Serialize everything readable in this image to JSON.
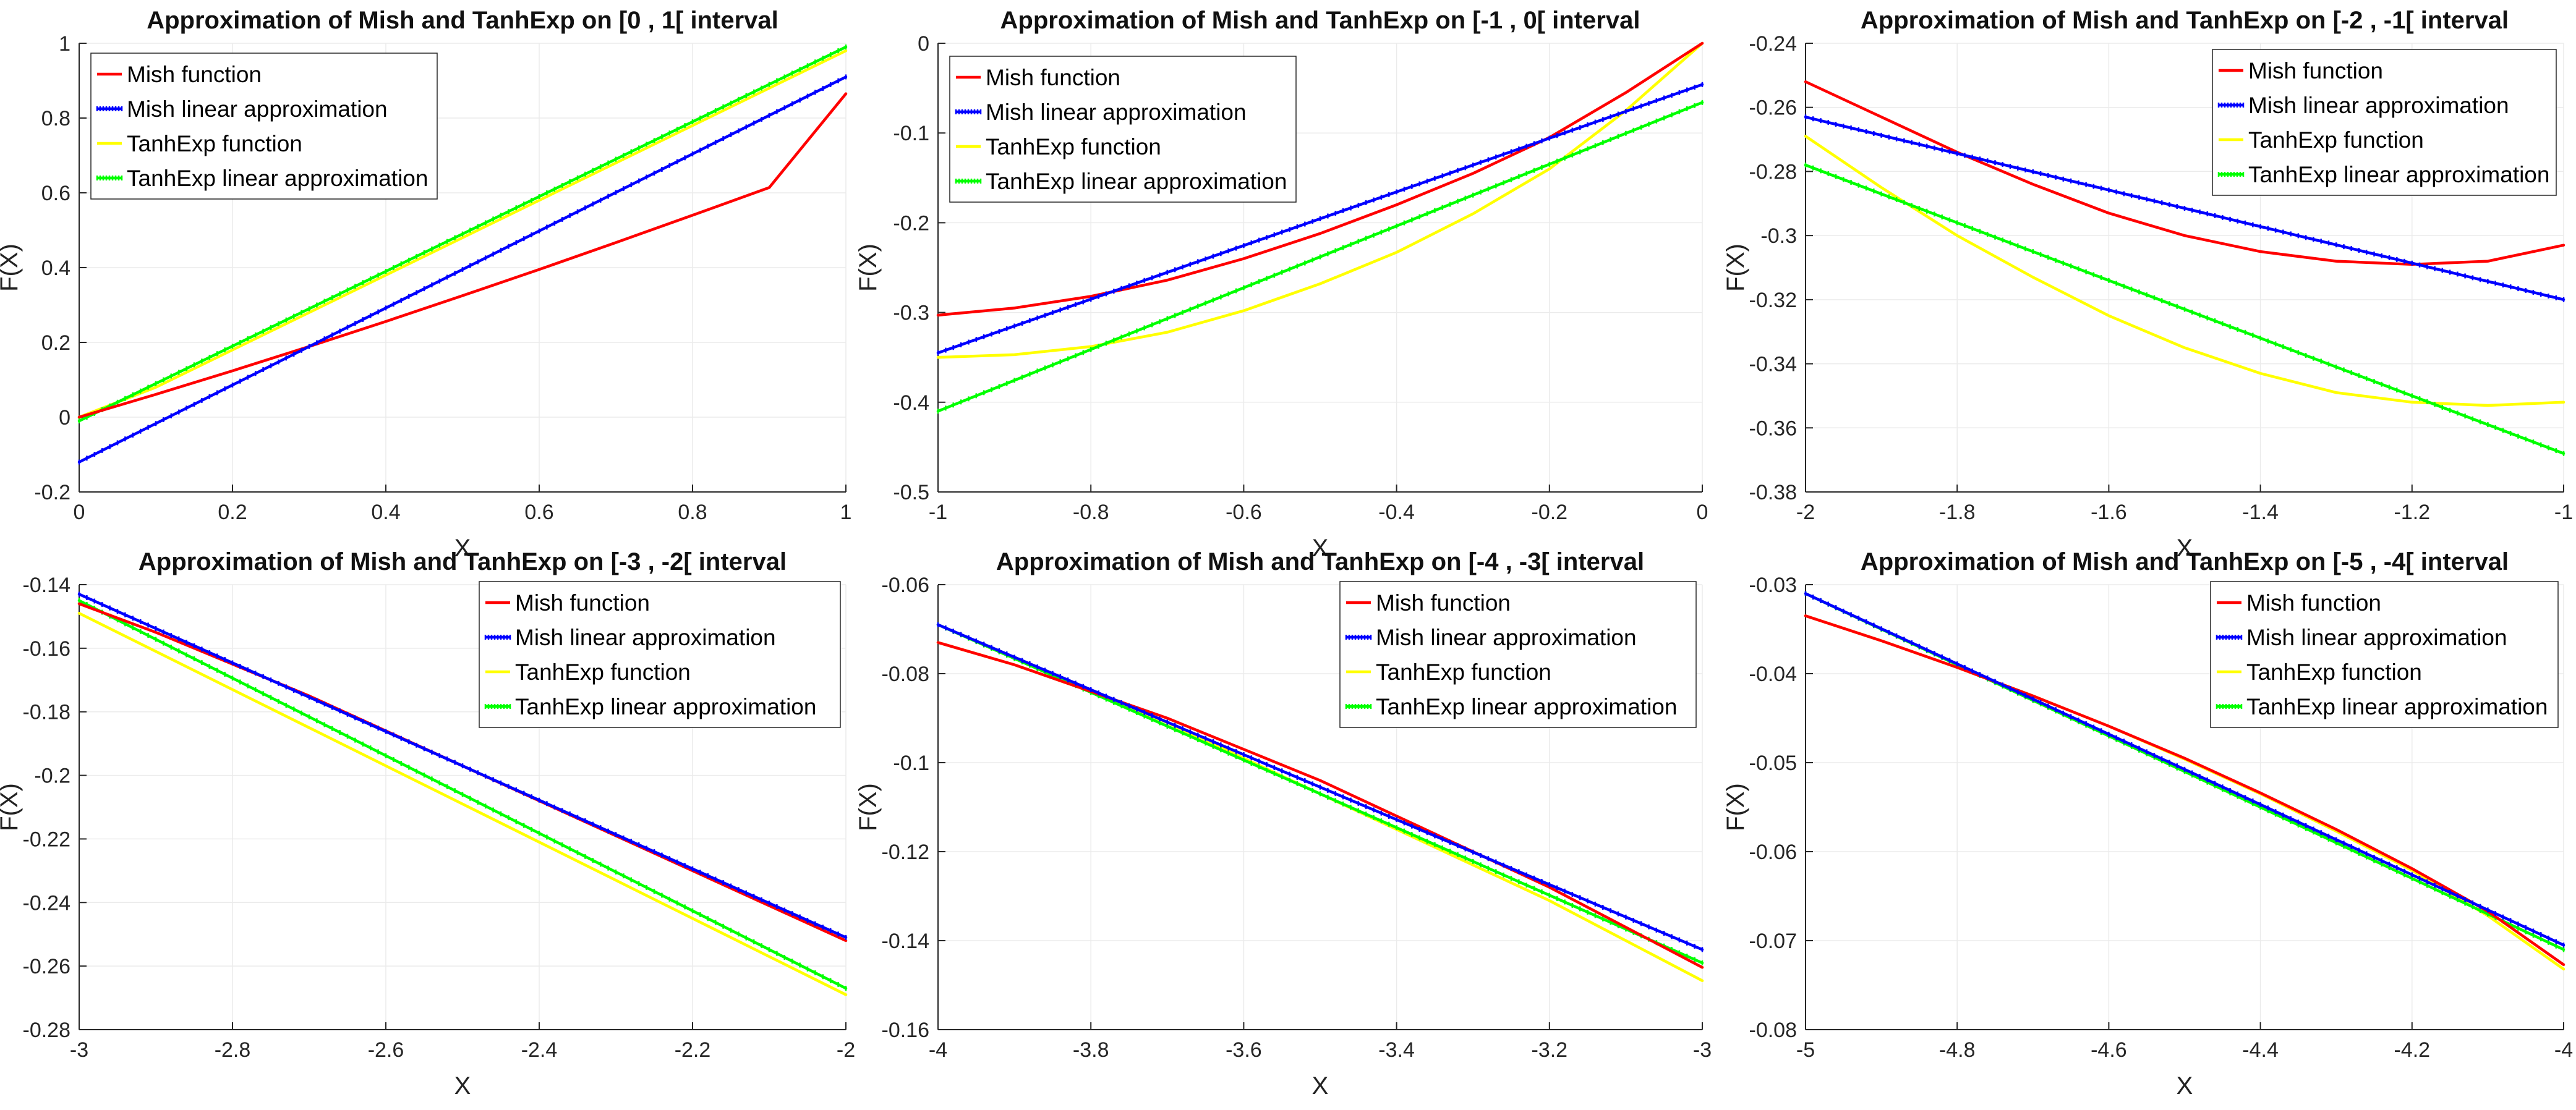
{
  "chart_data": [
    {
      "type": "line",
      "title": "Approximation of Mish and TanhExp on [0 , 1[ interval",
      "xlabel": "X",
      "ylabel": "F(X)",
      "xlim": [
        0,
        1
      ],
      "ylim": [
        -0.2,
        1
      ],
      "xticks": [
        0,
        0.2,
        0.4,
        0.6,
        0.8,
        1
      ],
      "yticks": [
        -0.2,
        0,
        0.2,
        0.4,
        0.6,
        0.8,
        1
      ],
      "xtick_labels": [
        "0",
        "0.2",
        "0.4",
        "0.6",
        "0.8",
        "1"
      ],
      "ytick_labels": [
        "-0.2",
        "0",
        "0.2",
        "0.4",
        "0.6",
        "0.8",
        "1"
      ],
      "legend": "top-left",
      "series": [
        {
          "name": "Mish function",
          "color": "#ff0000",
          "x": [
            0,
            0.1,
            0.2,
            0.3,
            0.4,
            0.5,
            0.6,
            0.7,
            0.8,
            0.9,
            1
          ],
          "values": [
            0,
            0.061,
            0.124,
            0.189,
            0.256,
            0.325,
            0.395,
            0.467,
            0.54,
            0.614,
            0.865
          ]
        },
        {
          "name": "Mish linear approximation",
          "color": "#0000ff",
          "marker": true,
          "x": [
            0,
            1
          ],
          "values": [
            -0.12,
            0.91
          ]
        },
        {
          "name": "TanhExp function",
          "color": "#ffff00",
          "x": [
            0,
            0.1,
            0.2,
            0.3,
            0.4,
            0.5,
            0.6,
            0.7,
            0.8,
            0.9,
            1
          ],
          "values": [
            0,
            0.08,
            0.18,
            0.28,
            0.38,
            0.48,
            0.58,
            0.68,
            0.78,
            0.88,
            0.98
          ]
        },
        {
          "name": "TanhExp linear approximation",
          "color": "#00ff00",
          "marker": true,
          "x": [
            0,
            1
          ],
          "values": [
            -0.01,
            0.99
          ]
        }
      ]
    },
    {
      "type": "line",
      "title": "Approximation of Mish and TanhExp on [-1 , 0[ interval",
      "xlabel": "X",
      "ylabel": "F(X)",
      "xlim": [
        -1,
        0
      ],
      "ylim": [
        -0.5,
        0
      ],
      "xticks": [
        -1,
        -0.8,
        -0.6,
        -0.4,
        -0.2,
        0
      ],
      "yticks": [
        -0.5,
        -0.4,
        -0.3,
        -0.2,
        -0.1,
        0
      ],
      "xtick_labels": [
        "-1",
        "-0.8",
        "-0.6",
        "-0.4",
        "-0.2",
        "0"
      ],
      "ytick_labels": [
        "-0.5",
        "-0.4",
        "-0.3",
        "-0.2",
        "-0.1",
        "0"
      ],
      "legend": "top-left",
      "series": [
        {
          "name": "Mish function",
          "color": "#ff0000",
          "x": [
            -1,
            -0.9,
            -0.8,
            -0.7,
            -0.6,
            -0.5,
            -0.4,
            -0.3,
            -0.2,
            -0.1,
            0
          ],
          "values": [
            -0.303,
            -0.295,
            -0.282,
            -0.264,
            -0.24,
            -0.212,
            -0.18,
            -0.145,
            -0.105,
            -0.055,
            0
          ]
        },
        {
          "name": "Mish linear approximation",
          "color": "#0000ff",
          "marker": true,
          "x": [
            -1,
            0
          ],
          "values": [
            -0.345,
            -0.046
          ]
        },
        {
          "name": "TanhExp function",
          "color": "#ffff00",
          "x": [
            -1,
            -0.9,
            -0.8,
            -0.7,
            -0.6,
            -0.5,
            -0.4,
            -0.3,
            -0.2,
            -0.1,
            0
          ],
          "values": [
            -0.35,
            -0.347,
            -0.338,
            -0.322,
            -0.298,
            -0.268,
            -0.233,
            -0.19,
            -0.14,
            -0.075,
            0
          ]
        },
        {
          "name": "TanhExp linear approximation",
          "color": "#00ff00",
          "marker": true,
          "x": [
            -1,
            0
          ],
          "values": [
            -0.41,
            -0.066
          ]
        }
      ]
    },
    {
      "type": "line",
      "title": "Approximation of Mish and TanhExp on [-2 , -1[ interval",
      "xlabel": "X",
      "ylabel": "F(X)",
      "xlim": [
        -2,
        -1
      ],
      "ylim": [
        -0.38,
        -0.24
      ],
      "xticks": [
        -2,
        -1.8,
        -1.6,
        -1.4,
        -1.2,
        -1
      ],
      "yticks": [
        -0.38,
        -0.36,
        -0.34,
        -0.32,
        -0.3,
        -0.28,
        -0.26,
        -0.24
      ],
      "xtick_labels": [
        "-2",
        "-1.8",
        "-1.6",
        "-1.4",
        "-1.2",
        "-1"
      ],
      "ytick_labels": [
        "-0.38",
        "-0.36",
        "-0.34",
        "-0.32",
        "-0.3",
        "-0.28",
        "-0.26",
        "-0.24"
      ],
      "legend": "top-right",
      "series": [
        {
          "name": "Mish function",
          "color": "#ff0000",
          "x": [
            -2,
            -1.9,
            -1.8,
            -1.7,
            -1.6,
            -1.5,
            -1.4,
            -1.3,
            -1.2,
            -1.1,
            -1
          ],
          "values": [
            -0.252,
            -0.263,
            -0.274,
            -0.284,
            -0.293,
            -0.3,
            -0.305,
            -0.308,
            -0.309,
            -0.308,
            -0.303
          ]
        },
        {
          "name": "Mish linear approximation",
          "color": "#0000ff",
          "marker": true,
          "x": [
            -2,
            -1
          ],
          "values": [
            -0.263,
            -0.32
          ]
        },
        {
          "name": "TanhExp function",
          "color": "#ffff00",
          "x": [
            -2,
            -1.9,
            -1.8,
            -1.7,
            -1.6,
            -1.5,
            -1.4,
            -1.3,
            -1.2,
            -1.1,
            -1
          ],
          "values": [
            -0.269,
            -0.285,
            -0.3,
            -0.313,
            -0.325,
            -0.335,
            -0.343,
            -0.349,
            -0.352,
            -0.353,
            -0.352
          ]
        },
        {
          "name": "TanhExp linear approximation",
          "color": "#00ff00",
          "marker": true,
          "x": [
            -2,
            -1
          ],
          "values": [
            -0.278,
            -0.368
          ]
        }
      ]
    },
    {
      "type": "line",
      "title": "Approximation of Mish and TanhExp on [-3 , -2[ interval",
      "xlabel": "X",
      "ylabel": "F(X)",
      "xlim": [
        -3,
        -2
      ],
      "ylim": [
        -0.28,
        -0.14
      ],
      "xticks": [
        -3,
        -2.8,
        -2.6,
        -2.4,
        -2.2,
        -2
      ],
      "yticks": [
        -0.28,
        -0.26,
        -0.24,
        -0.22,
        -0.2,
        -0.18,
        -0.16,
        -0.14
      ],
      "xtick_labels": [
        "-3",
        "-2.8",
        "-2.6",
        "-2.4",
        "-2.2",
        "-2"
      ],
      "ytick_labels": [
        "-0.28",
        "-0.26",
        "-0.24",
        "-0.22",
        "-0.2",
        "-0.18",
        "-0.16",
        "-0.14"
      ],
      "legend": "top-right",
      "series": [
        {
          "name": "Mish function",
          "color": "#ff0000",
          "x": [
            -3,
            -2.9,
            -2.8,
            -2.7,
            -2.6,
            -2.5,
            -2.4,
            -2.3,
            -2.2,
            -2.1,
            -2
          ],
          "values": [
            -0.146,
            -0.155,
            -0.165,
            -0.175,
            -0.186,
            -0.197,
            -0.208,
            -0.219,
            -0.23,
            -0.241,
            -0.252
          ]
        },
        {
          "name": "Mish linear approximation",
          "color": "#0000ff",
          "marker": true,
          "x": [
            -3,
            -2
          ],
          "values": [
            -0.143,
            -0.251
          ]
        },
        {
          "name": "TanhExp function",
          "color": "#ffff00",
          "x": [
            -3,
            -2.9,
            -2.8,
            -2.7,
            -2.6,
            -2.5,
            -2.4,
            -2.3,
            -2.2,
            -2.1,
            -2
          ],
          "values": [
            -0.149,
            -0.161,
            -0.173,
            -0.185,
            -0.197,
            -0.209,
            -0.221,
            -0.233,
            -0.245,
            -0.257,
            -0.269
          ]
        },
        {
          "name": "TanhExp linear approximation",
          "color": "#00ff00",
          "marker": true,
          "x": [
            -3,
            -2
          ],
          "values": [
            -0.145,
            -0.267
          ]
        }
      ]
    },
    {
      "type": "line",
      "title": "Approximation of Mish and TanhExp on [-4 , -3[ interval",
      "xlabel": "X",
      "ylabel": "F(X)",
      "xlim": [
        -4,
        -3
      ],
      "ylim": [
        -0.16,
        -0.06
      ],
      "xticks": [
        -4,
        -3.8,
        -3.6,
        -3.4,
        -3.2,
        -3
      ],
      "yticks": [
        -0.16,
        -0.14,
        -0.12,
        -0.1,
        -0.08,
        -0.06
      ],
      "xtick_labels": [
        "-4",
        "-3.8",
        "-3.6",
        "-3.4",
        "-3.2",
        "-3"
      ],
      "ytick_labels": [
        "-0.16",
        "-0.14",
        "-0.12",
        "-0.1",
        "-0.08",
        "-0.06"
      ],
      "legend": "top-right",
      "series": [
        {
          "name": "Mish function",
          "color": "#ff0000",
          "x": [
            -4,
            -3.9,
            -3.8,
            -3.7,
            -3.6,
            -3.5,
            -3.4,
            -3.3,
            -3.2,
            -3.1,
            -3
          ],
          "values": [
            -0.073,
            -0.078,
            -0.084,
            -0.09,
            -0.097,
            -0.104,
            -0.112,
            -0.12,
            -0.128,
            -0.137,
            -0.146
          ]
        },
        {
          "name": "Mish linear approximation",
          "color": "#0000ff",
          "marker": true,
          "x": [
            -4,
            -3
          ],
          "values": [
            -0.069,
            -0.142
          ]
        },
        {
          "name": "TanhExp function",
          "color": "#ffff00",
          "x": [
            -4,
            -3.9,
            -3.8,
            -3.7,
            -3.6,
            -3.5,
            -3.4,
            -3.3,
            -3.2,
            -3.1,
            -3
          ],
          "values": [
            -0.073,
            -0.078,
            -0.084,
            -0.091,
            -0.099,
            -0.107,
            -0.115,
            -0.123,
            -0.131,
            -0.14,
            -0.149
          ]
        },
        {
          "name": "TanhExp linear approximation",
          "color": "#00ff00",
          "marker": true,
          "x": [
            -4,
            -3
          ],
          "values": [
            -0.069,
            -0.145
          ]
        }
      ]
    },
    {
      "type": "line",
      "title": "Approximation of Mish and TanhExp on [-5 , -4[ interval",
      "xlabel": "X",
      "ylabel": "F(X)",
      "xlim": [
        -5,
        -4
      ],
      "ylim": [
        -0.08,
        -0.03
      ],
      "xticks": [
        -5,
        -4.8,
        -4.6,
        -4.4,
        -4.2,
        -4
      ],
      "yticks": [
        -0.08,
        -0.07,
        -0.06,
        -0.05,
        -0.04,
        -0.03
      ],
      "xtick_labels": [
        "-5",
        "-4.8",
        "-4.6",
        "-4.4",
        "-4.2",
        "-4"
      ],
      "ytick_labels": [
        "-0.08",
        "-0.07",
        "-0.06",
        "-0.05",
        "-0.04",
        "-0.03"
      ],
      "legend": "top-right",
      "series": [
        {
          "name": "Mish function",
          "color": "#ff0000",
          "x": [
            -5,
            -4.9,
            -4.8,
            -4.7,
            -4.6,
            -4.5,
            -4.4,
            -4.3,
            -4.2,
            -4.1,
            -4
          ],
          "values": [
            -0.0335,
            -0.0363,
            -0.0393,
            -0.0425,
            -0.0459,
            -0.0495,
            -0.0534,
            -0.0575,
            -0.0619,
            -0.0667,
            -0.0727
          ]
        },
        {
          "name": "Mish linear approximation",
          "color": "#0000ff",
          "marker": true,
          "x": [
            -5,
            -4
          ],
          "values": [
            -0.031,
            -0.0705
          ]
        },
        {
          "name": "TanhExp function",
          "color": "#ffff00",
          "x": [
            -5,
            -4.9,
            -4.8,
            -4.7,
            -4.6,
            -4.5,
            -4.4,
            -4.3,
            -4.2,
            -4.1,
            -4
          ],
          "values": [
            -0.0335,
            -0.0363,
            -0.0393,
            -0.0425,
            -0.0459,
            -0.0496,
            -0.0535,
            -0.0577,
            -0.0621,
            -0.0672,
            -0.0732
          ]
        },
        {
          "name": "TanhExp linear approximation",
          "color": "#00ff00",
          "marker": true,
          "x": [
            -5,
            -4
          ],
          "values": [
            -0.031,
            -0.071
          ]
        }
      ]
    }
  ]
}
